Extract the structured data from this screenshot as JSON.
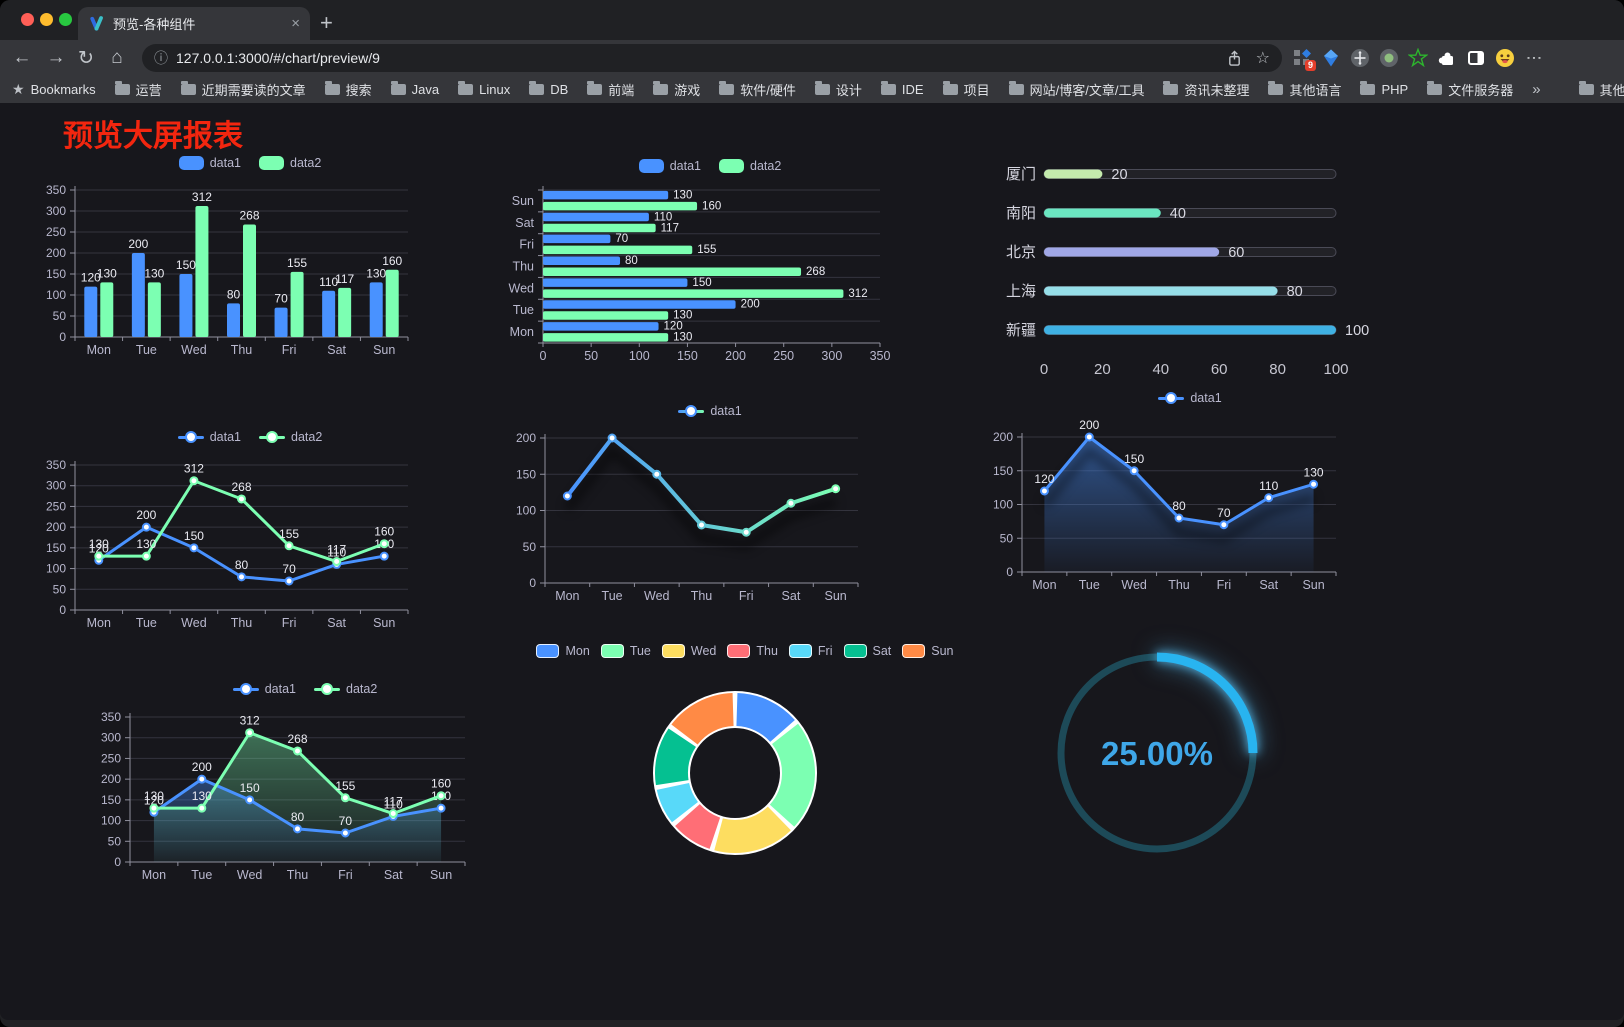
{
  "browser": {
    "tab": {
      "title": "预览-各种组件",
      "close_label": "×",
      "new_tab_label": "+"
    },
    "address": {
      "url": "127.0.0.1:3000/#/chart/preview/9"
    },
    "icons": {
      "back": "←",
      "forward": "→",
      "reload": "↻",
      "home": "⌂",
      "info": "ⓘ",
      "star": "☆",
      "menu": "⋮",
      "bookmarks_star": "★",
      "overflow": "»"
    },
    "extensions_badge": "9",
    "bookmarks": {
      "root_label": "Bookmarks",
      "items": [
        "运营",
        "近期需要读的文章",
        "搜索",
        "Java",
        "Linux",
        "DB",
        "前端",
        "游戏",
        "软件/硬件",
        "设计",
        "IDE",
        "项目",
        "网站/博客/文章/工具",
        "资讯未整理",
        "其他语言",
        "PHP",
        "文件服务器"
      ],
      "other_label": "其他书签"
    }
  },
  "page": {
    "title": "预览大屏报表",
    "title_color": "#f3260f",
    "background": "#17171c"
  },
  "chart_data": [
    {
      "id": "c1",
      "type": "bar",
      "categories": [
        "Mon",
        "Tue",
        "Wed",
        "Thu",
        "Fri",
        "Sat",
        "Sun"
      ],
      "series": [
        {
          "name": "data1",
          "color": "#4992ff",
          "values": [
            120,
            200,
            150,
            80,
            70,
            110,
            130
          ]
        },
        {
          "name": "data2",
          "color": "#7cffb2",
          "values": [
            130,
            130,
            312,
            268,
            155,
            117,
            160
          ]
        }
      ],
      "ylim": [
        0,
        350
      ],
      "ystep": 50,
      "value_labels": true,
      "legend_position": "top"
    },
    {
      "id": "c2",
      "type": "bar-horizontal",
      "categories": [
        "Mon",
        "Tue",
        "Wed",
        "Thu",
        "Fri",
        "Sat",
        "Sun"
      ],
      "display_order_top_to_bottom": [
        "Sun",
        "Sat",
        "Fri",
        "Thu",
        "Wed",
        "Tue",
        "Mon"
      ],
      "series": [
        {
          "name": "data1",
          "color": "#4992ff",
          "values": [
            120,
            200,
            150,
            80,
            70,
            110,
            130
          ]
        },
        {
          "name": "data2",
          "color": "#7cffb2",
          "values": [
            130,
            130,
            312,
            268,
            155,
            117,
            160
          ]
        }
      ],
      "xlim": [
        0,
        350
      ],
      "xstep": 50,
      "value_labels": true,
      "legend_position": "top"
    },
    {
      "id": "c3",
      "type": "progress-bars",
      "items": [
        {
          "label": "厦门",
          "value": 20,
          "color": "#c4ebad"
        },
        {
          "label": "南阳",
          "value": 40,
          "color": "#6be6c1"
        },
        {
          "label": "北京",
          "value": 60,
          "color": "#a0a7e6"
        },
        {
          "label": "上海",
          "value": 80,
          "color": "#96dee8"
        },
        {
          "label": "新疆",
          "value": 100,
          "color": "#3fb1e3"
        }
      ],
      "xlim": [
        0,
        100
      ],
      "xticks": [
        0,
        20,
        40,
        60,
        80,
        100
      ]
    },
    {
      "id": "c4",
      "type": "line",
      "categories": [
        "Mon",
        "Tue",
        "Wed",
        "Thu",
        "Fri",
        "Sat",
        "Sun"
      ],
      "series": [
        {
          "name": "data1",
          "color": "#4992ff",
          "values": [
            120,
            200,
            150,
            80,
            70,
            110,
            130
          ]
        },
        {
          "name": "data2",
          "color": "#7cffb2",
          "values": [
            130,
            130,
            312,
            268,
            155,
            117,
            160
          ]
        }
      ],
      "ylim": [
        0,
        350
      ],
      "ystep": 50,
      "value_labels": true,
      "legend_position": "top"
    },
    {
      "id": "c5",
      "type": "line-gradient",
      "categories": [
        "Mon",
        "Tue",
        "Wed",
        "Thu",
        "Fri",
        "Sat",
        "Sun"
      ],
      "series": [
        {
          "name": "data1",
          "color_gradient": [
            "#4992ff",
            "#7cffb2"
          ],
          "values": [
            120,
            200,
            150,
            80,
            70,
            110,
            130
          ]
        }
      ],
      "ylim": [
        0,
        200
      ],
      "ystep": 50,
      "value_labels": false,
      "legend_position": "top"
    },
    {
      "id": "c6",
      "type": "area",
      "categories": [
        "Mon",
        "Tue",
        "Wed",
        "Thu",
        "Fri",
        "Sat",
        "Sun"
      ],
      "series": [
        {
          "name": "data1",
          "color": "#4992ff",
          "values": [
            120,
            200,
            150,
            80,
            70,
            110,
            130
          ]
        }
      ],
      "ylim": [
        0,
        200
      ],
      "ystep": 50,
      "value_labels": true,
      "legend_position": "top"
    },
    {
      "id": "c7",
      "type": "area",
      "categories": [
        "Mon",
        "Tue",
        "Wed",
        "Thu",
        "Fri",
        "Sat",
        "Sun"
      ],
      "series": [
        {
          "name": "data1",
          "color": "#4992ff",
          "values": [
            120,
            200,
            150,
            80,
            70,
            110,
            130
          ]
        },
        {
          "name": "data2",
          "color": "#7cffb2",
          "values": [
            130,
            130,
            312,
            268,
            155,
            117,
            160
          ]
        }
      ],
      "ylim": [
        0,
        350
      ],
      "ystep": 50,
      "value_labels": true,
      "legend_position": "top"
    },
    {
      "id": "c8",
      "type": "pie",
      "shape": "donut",
      "items": [
        {
          "label": "Mon",
          "value": 120,
          "color": "#4992ff"
        },
        {
          "label": "Tue",
          "value": 200,
          "color": "#7cffb2"
        },
        {
          "label": "Wed",
          "value": 150,
          "color": "#fddd60"
        },
        {
          "label": "Thu",
          "value": 80,
          "color": "#ff6e76"
        },
        {
          "label": "Fri",
          "value": 70,
          "color": "#58d9f9"
        },
        {
          "label": "Sat",
          "value": 110,
          "color": "#05c091"
        },
        {
          "label": "Sun",
          "value": 130,
          "color": "#ff8a45"
        }
      ],
      "border_color": "#ffffff",
      "legend_position": "top"
    },
    {
      "id": "c9",
      "type": "gauge",
      "value": 25,
      "max": 100,
      "display": "25.00%",
      "color": "#28b4f0",
      "track_color": "#1d4a58",
      "text_color": "#3fa7e8"
    }
  ]
}
